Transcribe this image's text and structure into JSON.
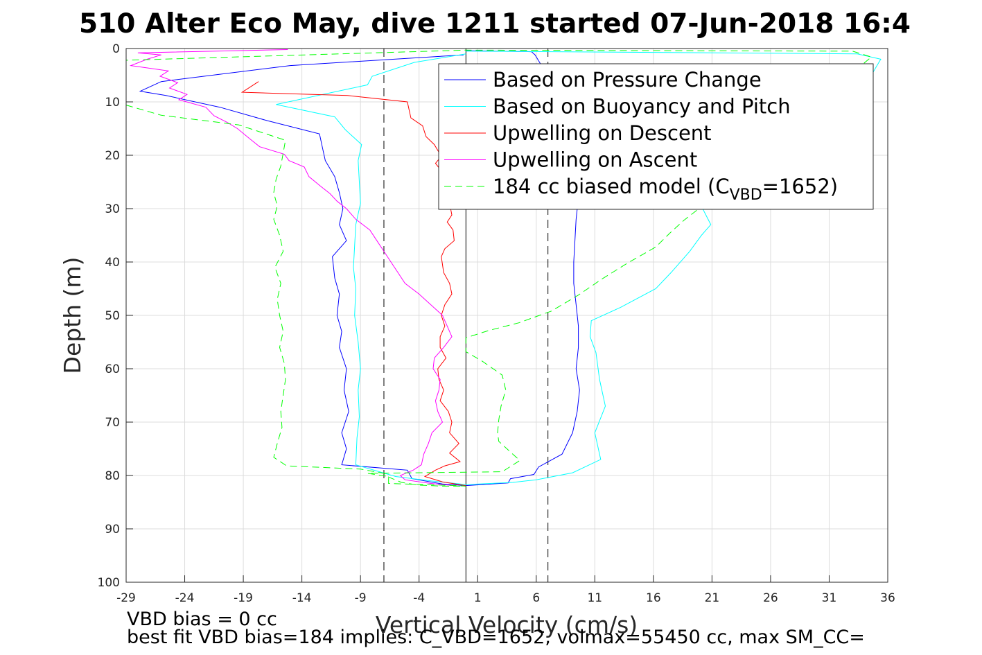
{
  "chart_data": {
    "type": "line",
    "title": "510 Alter Eco May, dive 1211 started 07-Jun-2018 16:4",
    "xlabel": "Vertical Velocity (cm/s)",
    "ylabel": "Depth (m)",
    "xlim": [
      -29,
      36
    ],
    "ylim": [
      0,
      100
    ],
    "y_reversed": true,
    "grid": true,
    "legend_position": "top-right",
    "x_ticks": [
      "-29",
      "-24",
      "-19",
      "-14",
      "-9",
      "-4",
      "1",
      "6",
      "11",
      "16",
      "21",
      "26",
      "31",
      "36"
    ],
    "y_ticks": [
      "0",
      "10",
      "20",
      "30",
      "40",
      "50",
      "60",
      "70",
      "80",
      "90",
      "100"
    ],
    "ref_lines": [
      {
        "x": 0,
        "style": "solid",
        "color": "#000000"
      },
      {
        "x": -7,
        "style": "dashed",
        "color": "#000000"
      },
      {
        "x": 7,
        "style": "dashed",
        "color": "#000000"
      }
    ],
    "series": [
      {
        "name": "Based on Pressure Change",
        "color": "#0000ff",
        "dash": "solid",
        "points": [
          [
            -0.2,
            1.2
          ],
          [
            -15,
            3.2
          ],
          [
            -26,
            6.2
          ],
          [
            -27.8,
            8.0
          ],
          [
            -25.6,
            8.8
          ],
          [
            -21,
            11
          ],
          [
            -17,
            13.5
          ],
          [
            -12.5,
            16
          ],
          [
            -12.2,
            19
          ],
          [
            -12,
            21
          ],
          [
            -11.2,
            24
          ],
          [
            -10.8,
            27
          ],
          [
            -10.5,
            30
          ],
          [
            -10.8,
            33
          ],
          [
            -10.2,
            36
          ],
          [
            -11.4,
            39
          ],
          [
            -11.2,
            43
          ],
          [
            -10.8,
            46
          ],
          [
            -11,
            50
          ],
          [
            -10.6,
            53
          ],
          [
            -10.8,
            56
          ],
          [
            -10.2,
            60
          ],
          [
            -10.4,
            64
          ],
          [
            -10,
            68
          ],
          [
            -10.6,
            72
          ],
          [
            -10.2,
            75
          ],
          [
            -10.6,
            78
          ],
          [
            -5,
            79
          ],
          [
            -4.6,
            80.6
          ],
          [
            -2,
            81.6
          ],
          [
            0,
            81.9
          ],
          [
            3.6,
            81.4
          ],
          [
            3.8,
            80.6
          ],
          [
            5.8,
            79.8
          ],
          [
            6.2,
            78.4
          ],
          [
            8.2,
            76
          ],
          [
            9.1,
            72
          ],
          [
            9.5,
            68
          ],
          [
            9.7,
            64
          ],
          [
            9.4,
            60
          ],
          [
            9.6,
            56
          ],
          [
            9.6,
            52
          ],
          [
            9.4,
            48
          ],
          [
            9.2,
            44
          ],
          [
            9.2,
            40
          ],
          [
            9.3,
            36
          ],
          [
            9.4,
            32
          ],
          [
            9.6,
            28
          ],
          [
            9.6,
            22
          ],
          [
            9.4,
            18
          ],
          [
            9.8,
            14
          ],
          [
            9,
            10
          ],
          [
            7.4,
            6
          ],
          [
            6.4,
            3
          ],
          [
            5.9,
            1.2
          ],
          [
            5.6,
            0.6
          ],
          [
            0,
            0.4
          ]
        ]
      },
      {
        "name": "Based on Buoyancy and Pitch",
        "color": "#00ffff",
        "dash": "solid",
        "points": [
          [
            0,
            1.0
          ],
          [
            -4.4,
            2.6
          ],
          [
            -8,
            5.2
          ],
          [
            -8.4,
            6.8
          ],
          [
            -16.2,
            10.5
          ],
          [
            -11.2,
            12.8
          ],
          [
            -10.3,
            15.2
          ],
          [
            -8.9,
            18
          ],
          [
            -9.2,
            21
          ],
          [
            -9.1,
            25
          ],
          [
            -9.0,
            29
          ],
          [
            -9.4,
            33
          ],
          [
            -9.5,
            37
          ],
          [
            -9.6,
            41
          ],
          [
            -9.4,
            45
          ],
          [
            -9.5,
            50
          ],
          [
            -9.2,
            55
          ],
          [
            -9,
            60
          ],
          [
            -9.2,
            64
          ],
          [
            -9.1,
            69
          ],
          [
            -9.3,
            73
          ],
          [
            -9.4,
            78
          ],
          [
            -6,
            80.2
          ],
          [
            -3,
            81
          ],
          [
            0,
            81.7
          ],
          [
            4,
            81.3
          ],
          [
            6,
            80.8
          ],
          [
            9.1,
            79.5
          ],
          [
            11.5,
            77
          ],
          [
            11,
            72
          ],
          [
            11.9,
            67
          ],
          [
            11.4,
            62
          ],
          [
            11.1,
            57
          ],
          [
            10.6,
            54
          ],
          [
            10.7,
            51
          ],
          [
            13.2,
            48.5
          ],
          [
            16.2,
            45
          ],
          [
            17.5,
            42
          ],
          [
            19.1,
            38
          ],
          [
            20.1,
            35
          ],
          [
            20.9,
            33
          ],
          [
            20.2,
            30
          ],
          [
            22.4,
            28
          ],
          [
            24.8,
            24
          ],
          [
            27.6,
            20
          ],
          [
            30.5,
            16
          ],
          [
            32.2,
            12
          ],
          [
            33.4,
            9
          ],
          [
            34.6,
            5
          ],
          [
            35.4,
            2
          ],
          [
            33.4,
            1.0
          ],
          [
            0,
            0.5
          ]
        ]
      },
      {
        "name": "Upwelling on Descent",
        "color": "#ff0000",
        "dash": "solid",
        "points": [
          [
            -17.7,
            6.2
          ],
          [
            -19.1,
            8.2
          ],
          [
            -10.1,
            8.8
          ],
          [
            -5,
            10
          ],
          [
            -4.7,
            13
          ],
          [
            -3.7,
            14.5
          ],
          [
            -3.4,
            16.5
          ],
          [
            -2.7,
            18
          ],
          [
            -2.1,
            20.2
          ],
          [
            -2.6,
            21.5
          ],
          [
            -2.0,
            23.2
          ],
          [
            -1.5,
            24.5
          ],
          [
            -1.8,
            26
          ],
          [
            -2,
            27.6
          ],
          [
            -1.4,
            29
          ],
          [
            -1.2,
            31.2
          ],
          [
            -1.6,
            32.5
          ],
          [
            -1.1,
            34
          ],
          [
            -1.0,
            36
          ],
          [
            -1.8,
            37.5
          ],
          [
            -2.1,
            39
          ],
          [
            -1.9,
            42
          ],
          [
            -1.4,
            44
          ],
          [
            -1.2,
            46
          ],
          [
            -1.8,
            48
          ],
          [
            -2.1,
            50
          ],
          [
            -1.8,
            52
          ],
          [
            -2.2,
            54
          ],
          [
            -2.2,
            56
          ],
          [
            -1.7,
            58
          ],
          [
            -2.4,
            60
          ],
          [
            -2.3,
            62
          ],
          [
            -1.9,
            64
          ],
          [
            -2.2,
            66
          ],
          [
            -1.5,
            68
          ],
          [
            -1.2,
            70
          ],
          [
            -1.4,
            72
          ],
          [
            -0.6,
            74
          ],
          [
            -1.4,
            75.8
          ],
          [
            -0.5,
            77.4
          ],
          [
            -1.8,
            78.2
          ],
          [
            -2.6,
            79
          ],
          [
            -3.5,
            80.2
          ],
          [
            -2,
            81.2
          ],
          [
            0,
            81.9
          ]
        ]
      },
      {
        "name": "Upwelling on Ascent",
        "color": "#ff00ff",
        "dash": "solid",
        "points": [
          [
            -15.2,
            0.2
          ],
          [
            -28,
            0.8
          ],
          [
            -26,
            1.2
          ],
          [
            -27.2,
            2.0
          ],
          [
            -28.6,
            3.2
          ],
          [
            -25.4,
            4.2
          ],
          [
            -26.1,
            5.2
          ],
          [
            -24.6,
            6.4
          ],
          [
            -25.3,
            7.4
          ],
          [
            -23.8,
            8.6
          ],
          [
            -24.5,
            9.6
          ],
          [
            -22.2,
            11.0
          ],
          [
            -21.5,
            12.6
          ],
          [
            -20.4,
            13.8
          ],
          [
            -19.5,
            15.0
          ],
          [
            -18.4,
            17
          ],
          [
            -17.6,
            18.4
          ],
          [
            -15.5,
            19.8
          ],
          [
            -15.1,
            21
          ],
          [
            -13.8,
            22.2
          ],
          [
            -13.4,
            24
          ],
          [
            -12.4,
            25.8
          ],
          [
            -11.6,
            27.2
          ],
          [
            -11,
            28.6
          ],
          [
            -10.2,
            30
          ],
          [
            -9.4,
            32
          ],
          [
            -8.2,
            34
          ],
          [
            -7.6,
            36
          ],
          [
            -7,
            38
          ],
          [
            -6.4,
            40
          ],
          [
            -5.8,
            42
          ],
          [
            -5.2,
            44
          ],
          [
            -4,
            46
          ],
          [
            -3,
            48
          ],
          [
            -2,
            50
          ],
          [
            -1.6,
            52
          ],
          [
            -1.2,
            54
          ],
          [
            -1.9,
            56
          ],
          [
            -2.7,
            58
          ],
          [
            -2.8,
            60
          ],
          [
            -2.2,
            62
          ],
          [
            -2.3,
            64
          ],
          [
            -2.6,
            66
          ],
          [
            -2.4,
            68
          ],
          [
            -2,
            70
          ],
          [
            -2.9,
            72
          ],
          [
            -3.2,
            74
          ],
          [
            -3.6,
            76
          ],
          [
            -3.8,
            78
          ],
          [
            -4.5,
            79
          ],
          [
            -5.6,
            80
          ],
          [
            -5.2,
            80.8
          ],
          [
            -3,
            81.5
          ],
          [
            -1,
            81.9
          ]
        ]
      },
      {
        "name": "184 cc biased model (C_VBD=1652)",
        "legend_label": "184 cc biased model (C",
        "legend_sub": "VBD",
        "legend_suffix": "=1652)",
        "color": "#00ff00",
        "dash": "dashed",
        "points": [
          [
            -29,
            10.6
          ],
          [
            -26,
            12.5
          ],
          [
            -19.4,
            14.3
          ],
          [
            -15.4,
            17.2
          ],
          [
            -15.6,
            19.6
          ],
          [
            -15.8,
            22
          ],
          [
            -16.2,
            24.5
          ],
          [
            -16.4,
            27
          ],
          [
            -16.1,
            29.5
          ],
          [
            -16.4,
            32
          ],
          [
            -15.9,
            35
          ],
          [
            -15.6,
            38
          ],
          [
            -16.3,
            41
          ],
          [
            -15.8,
            44
          ],
          [
            -16.1,
            47
          ],
          [
            -15.9,
            50
          ],
          [
            -15.6,
            53
          ],
          [
            -15.9,
            56
          ],
          [
            -15.5,
            59
          ],
          [
            -15.4,
            62
          ],
          [
            -15.6,
            65
          ],
          [
            -15.8,
            68
          ],
          [
            -15.7,
            71
          ],
          [
            -16.1,
            74
          ],
          [
            -16.4,
            76.6
          ],
          [
            -15.3,
            78.2
          ],
          [
            -9,
            78.8
          ],
          [
            -7,
            79.6
          ],
          [
            -6.6,
            80.3
          ],
          [
            -5.5,
            81.3
          ],
          [
            -4,
            81.8
          ],
          [
            -2,
            82.0
          ],
          [
            0,
            82.0
          ],
          [
            -0.8,
            81.9
          ],
          [
            -6.6,
            81.5
          ],
          [
            -6.6,
            80.2
          ],
          [
            -8.4,
            79.6
          ],
          [
            3.1,
            79.3
          ],
          [
            4.6,
            77.2
          ],
          [
            3.4,
            74.8
          ],
          [
            2.8,
            73.6
          ],
          [
            2.7,
            72
          ],
          [
            2.8,
            69.6
          ],
          [
            3,
            67
          ],
          [
            3.4,
            64
          ],
          [
            3.1,
            61.2
          ],
          [
            1.4,
            58.6
          ],
          [
            0,
            56.8
          ],
          [
            0,
            54.2
          ],
          [
            2,
            52.8
          ],
          [
            4.5,
            51.4
          ],
          [
            7.3,
            49.2
          ],
          [
            9.6,
            46.2
          ],
          [
            11.6,
            43.2
          ],
          [
            13.8,
            40.2
          ],
          [
            16.2,
            37.2
          ],
          [
            17.4,
            34.6
          ],
          [
            18.6,
            32.2
          ],
          [
            20,
            29.8
          ],
          [
            22.8,
            26.8
          ],
          [
            24.6,
            22
          ],
          [
            26.4,
            17.6
          ],
          [
            28.6,
            13.4
          ],
          [
            30.6,
            10
          ],
          [
            32.4,
            7.4
          ],
          [
            33.4,
            3.8
          ],
          [
            34.6,
            1.6
          ],
          [
            33,
            0.5
          ],
          [
            0,
            0.3
          ],
          [
            -29,
            2.2
          ]
        ]
      }
    ],
    "annotations": [
      "VBD bias = 0 cc",
      "best fit VBD bias=184 implies: C_VBD=1652, volmax=55450 cc, max SM_CC="
    ]
  }
}
